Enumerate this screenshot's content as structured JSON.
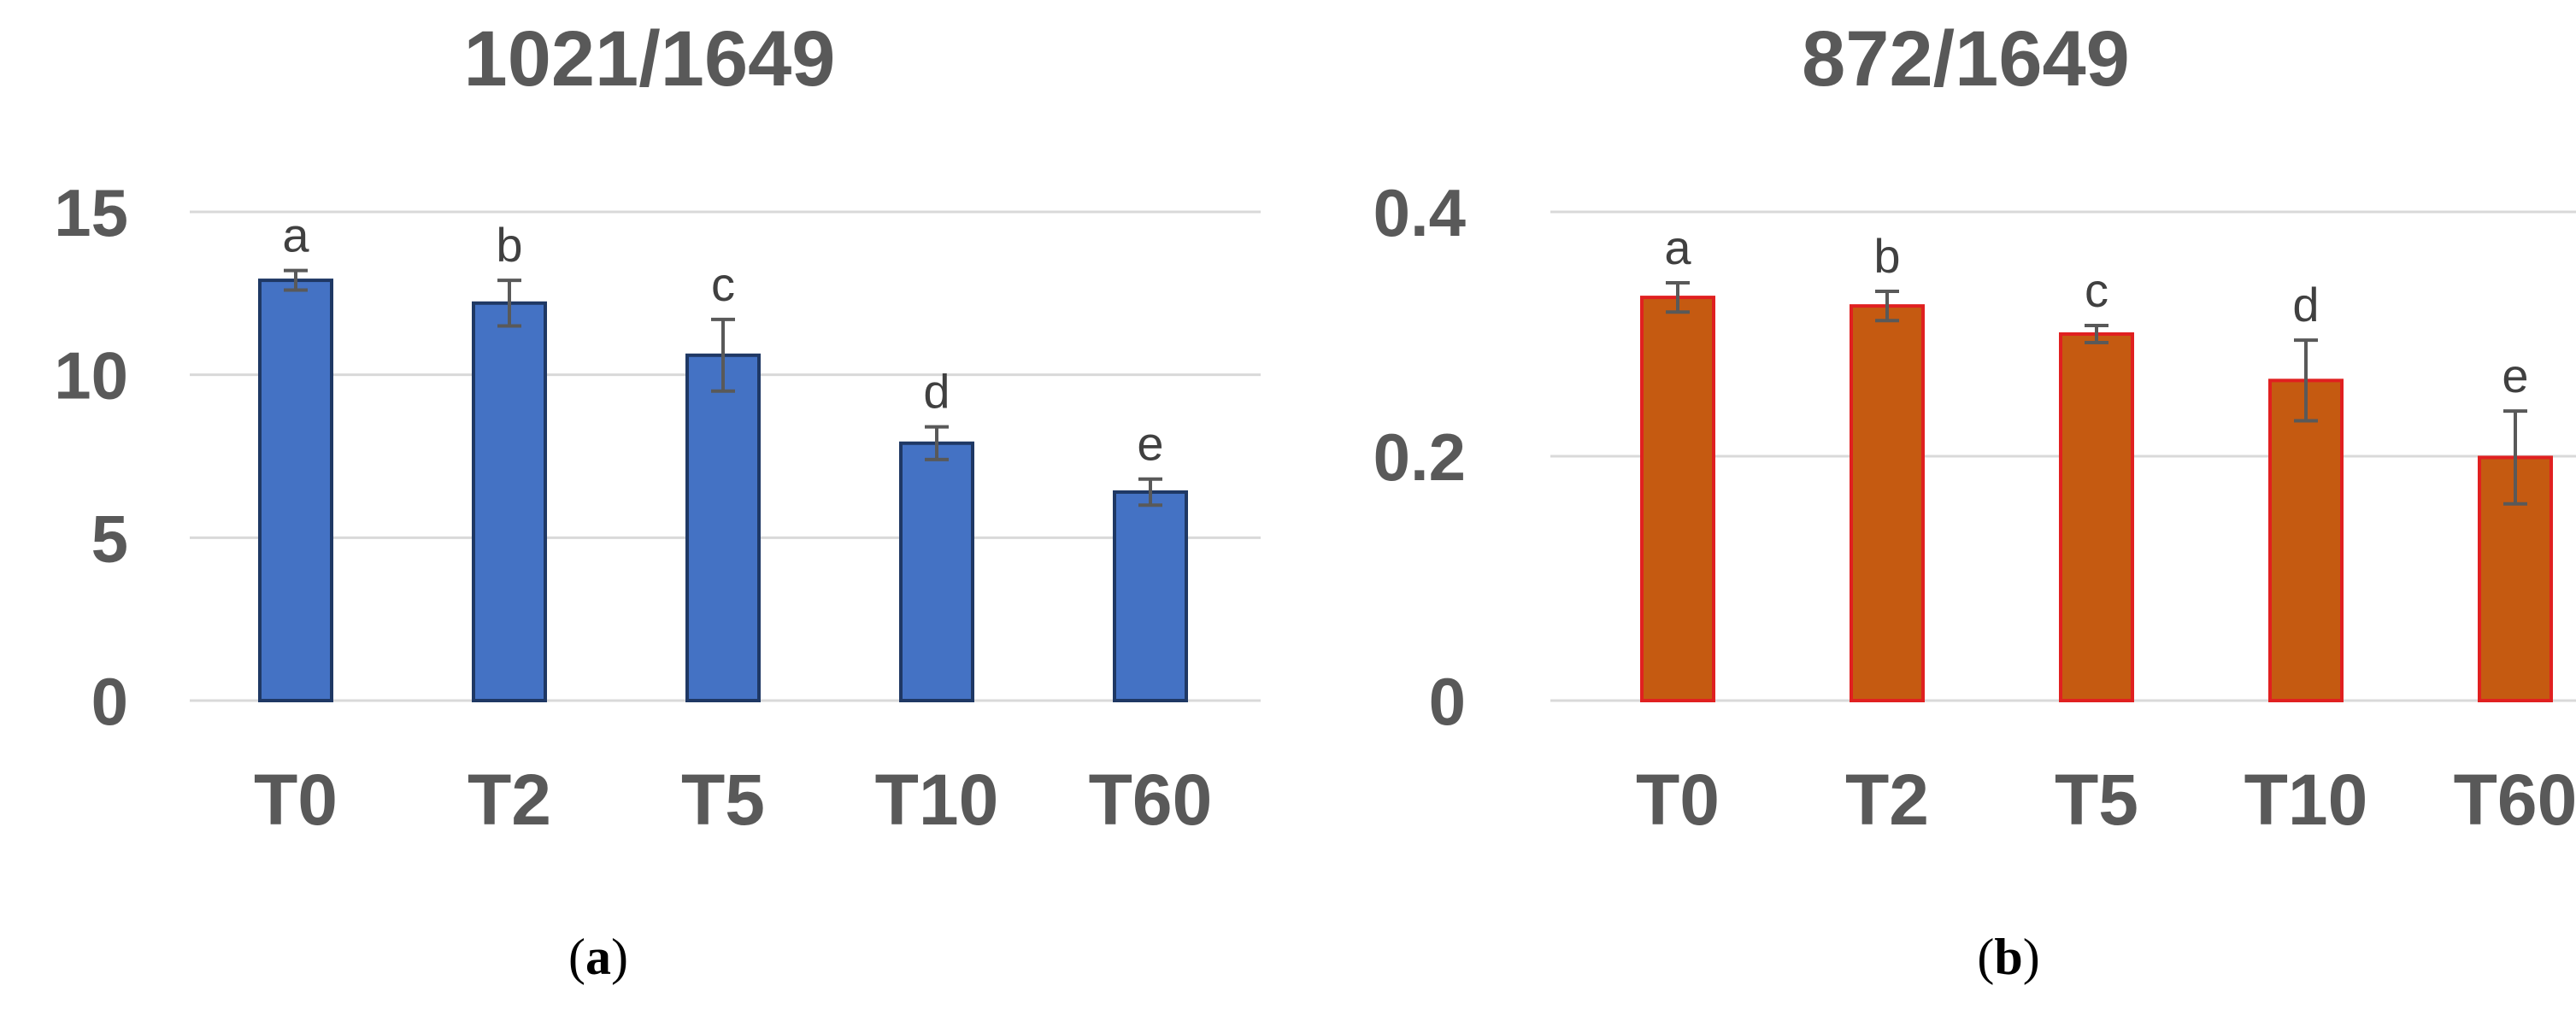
{
  "chart_data": [
    {
      "type": "bar",
      "title": "1021/1649",
      "categories": [
        "T0",
        "T2",
        "T5",
        "T10",
        "T60"
      ],
      "values": [
        12.9,
        12.2,
        10.6,
        7.9,
        6.4
      ],
      "errors": [
        0.3,
        0.7,
        1.1,
        0.5,
        0.4
      ],
      "significance_labels": [
        "a",
        "b",
        "c",
        "d",
        "e"
      ],
      "ylim": [
        0,
        15
      ],
      "yticks": [
        0,
        5,
        10,
        15
      ],
      "ytick_labels": [
        "0",
        "5",
        "10",
        "15"
      ],
      "grid": true,
      "bar_fill": "#4472C4",
      "bar_edge": "#1F3864",
      "panel_label": {
        "open": "(",
        "letter": "a",
        "close": ")"
      }
    },
    {
      "type": "bar",
      "title": "872/1649",
      "categories": [
        "T0",
        "T2",
        "T5",
        "T10",
        "T60"
      ],
      "values": [
        0.33,
        0.323,
        0.3,
        0.262,
        0.199
      ],
      "errors": [
        0.012,
        0.012,
        0.007,
        0.033,
        0.038
      ],
      "significance_labels": [
        "a",
        "b",
        "c",
        "d",
        "e"
      ],
      "ylim": [
        0,
        0.4
      ],
      "yticks": [
        0,
        0.2,
        0.4
      ],
      "ytick_labels": [
        "0",
        "0.2",
        "0.4"
      ],
      "grid": true,
      "bar_fill": "#C55A11",
      "bar_edge": "#E02020",
      "panel_label": {
        "open": "(",
        "letter": "b",
        "close": ")"
      }
    }
  ]
}
